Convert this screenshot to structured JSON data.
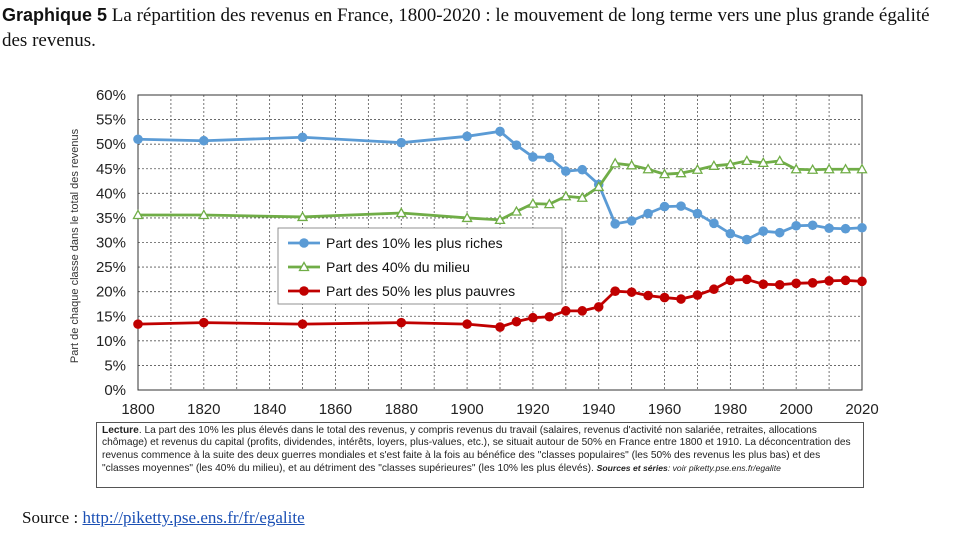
{
  "header": {
    "label": "Graphique 5",
    "title": "La répartition des revenus en France, 1800-2020 : le mouvement de long terme vers une plus grande égalité des revenus."
  },
  "chart_data": {
    "type": "line",
    "ylabel": "Part de chaque classe dans le total des revenus",
    "xlabel": "",
    "xlim": [
      1800,
      2020
    ],
    "ylim": [
      0,
      60
    ],
    "x_ticks": [
      1800,
      1820,
      1840,
      1860,
      1880,
      1900,
      1920,
      1940,
      1960,
      1980,
      2000,
      2020
    ],
    "y_ticks": [
      "0%",
      "5%",
      "10%",
      "15%",
      "20%",
      "25%",
      "30%",
      "35%",
      "40%",
      "45%",
      "50%",
      "55%",
      "60%"
    ],
    "grid": true,
    "legend_position": "center-left",
    "series": [
      {
        "name": "Part des 10% les plus riches",
        "color": "#5b9bd5",
        "marker": "circle",
        "points": [
          [
            1800,
            51
          ],
          [
            1820,
            50.7
          ],
          [
            1850,
            51.4
          ],
          [
            1880,
            50.3
          ],
          [
            1900,
            51.6
          ],
          [
            1910,
            52.6
          ],
          [
            1915,
            49.8
          ],
          [
            1920,
            47.4
          ],
          [
            1925,
            47.3
          ],
          [
            1930,
            44.5
          ],
          [
            1935,
            44.8
          ],
          [
            1940,
            41.8
          ],
          [
            1945,
            33.8
          ],
          [
            1950,
            34.4
          ],
          [
            1955,
            35.9
          ],
          [
            1960,
            37.3
          ],
          [
            1965,
            37.4
          ],
          [
            1970,
            35.9
          ],
          [
            1975,
            33.9
          ],
          [
            1980,
            31.8
          ],
          [
            1985,
            30.6
          ],
          [
            1990,
            32.3
          ],
          [
            1995,
            32.0
          ],
          [
            2000,
            33.4
          ],
          [
            2005,
            33.5
          ],
          [
            2010,
            32.9
          ],
          [
            2015,
            32.8
          ],
          [
            2020,
            33.0
          ]
        ]
      },
      {
        "name": "Part des 40% du milieu",
        "color": "#70ad47",
        "marker": "triangle-open",
        "points": [
          [
            1800,
            35.6
          ],
          [
            1820,
            35.6
          ],
          [
            1850,
            35.2
          ],
          [
            1880,
            36.0
          ],
          [
            1900,
            35.0
          ],
          [
            1910,
            34.6
          ],
          [
            1915,
            36.3
          ],
          [
            1920,
            37.9
          ],
          [
            1925,
            37.8
          ],
          [
            1930,
            39.4
          ],
          [
            1935,
            39.1
          ],
          [
            1940,
            41.3
          ],
          [
            1945,
            46.1
          ],
          [
            1950,
            45.7
          ],
          [
            1955,
            44.9
          ],
          [
            1960,
            43.9
          ],
          [
            1965,
            44.1
          ],
          [
            1970,
            44.8
          ],
          [
            1975,
            45.6
          ],
          [
            1980,
            45.9
          ],
          [
            1985,
            46.6
          ],
          [
            1990,
            46.2
          ],
          [
            1995,
            46.6
          ],
          [
            2000,
            44.9
          ],
          [
            2005,
            44.8
          ],
          [
            2010,
            44.9
          ],
          [
            2015,
            44.9
          ],
          [
            2020,
            44.9
          ]
        ]
      },
      {
        "name": "Part des 50% les plus pauvres",
        "color": "#c00000",
        "marker": "circle",
        "points": [
          [
            1800,
            13.4
          ],
          [
            1820,
            13.7
          ],
          [
            1850,
            13.4
          ],
          [
            1880,
            13.7
          ],
          [
            1900,
            13.4
          ],
          [
            1910,
            12.8
          ],
          [
            1915,
            13.9
          ],
          [
            1920,
            14.7
          ],
          [
            1925,
            14.9
          ],
          [
            1930,
            16.1
          ],
          [
            1935,
            16.1
          ],
          [
            1940,
            16.9
          ],
          [
            1945,
            20.1
          ],
          [
            1950,
            19.9
          ],
          [
            1955,
            19.2
          ],
          [
            1960,
            18.8
          ],
          [
            1965,
            18.5
          ],
          [
            1970,
            19.3
          ],
          [
            1975,
            20.5
          ],
          [
            1980,
            22.3
          ],
          [
            1985,
            22.5
          ],
          [
            1990,
            21.5
          ],
          [
            1995,
            21.4
          ],
          [
            2000,
            21.7
          ],
          [
            2005,
            21.8
          ],
          [
            2010,
            22.2
          ],
          [
            2015,
            22.3
          ],
          [
            2020,
            22.1
          ]
        ]
      }
    ]
  },
  "reading_note": {
    "heading": "Lecture",
    "text": ". La part des 10% les plus élevés dans le total des revenus, y compris revenus du travail (salaires, revenus d'activité non salariée, retraites, allocations chômage) et revenus du capital (profits, dividendes, intérêts, loyers, plus-values, etc.), se situait autour de 50% en France entre 1800 et 1910. La déconcentration des revenus commence à la suite des deux guerres mondiales et s'est faite à la fois au bénéfice des \"classes populaires\" (les 50% des revenus les plus bas) et des \"classes moyennes\" (les 40% du milieu), et au détriment des \"classes supérieures\" (les 10% les plus élevés).",
    "sources_label": "Sources et séries",
    "sources_text": ": voir piketty.pse.ens.fr/egalite"
  },
  "source": {
    "label": "Source :",
    "link_text": "http://piketty.pse.ens.fr/fr/egalite"
  }
}
